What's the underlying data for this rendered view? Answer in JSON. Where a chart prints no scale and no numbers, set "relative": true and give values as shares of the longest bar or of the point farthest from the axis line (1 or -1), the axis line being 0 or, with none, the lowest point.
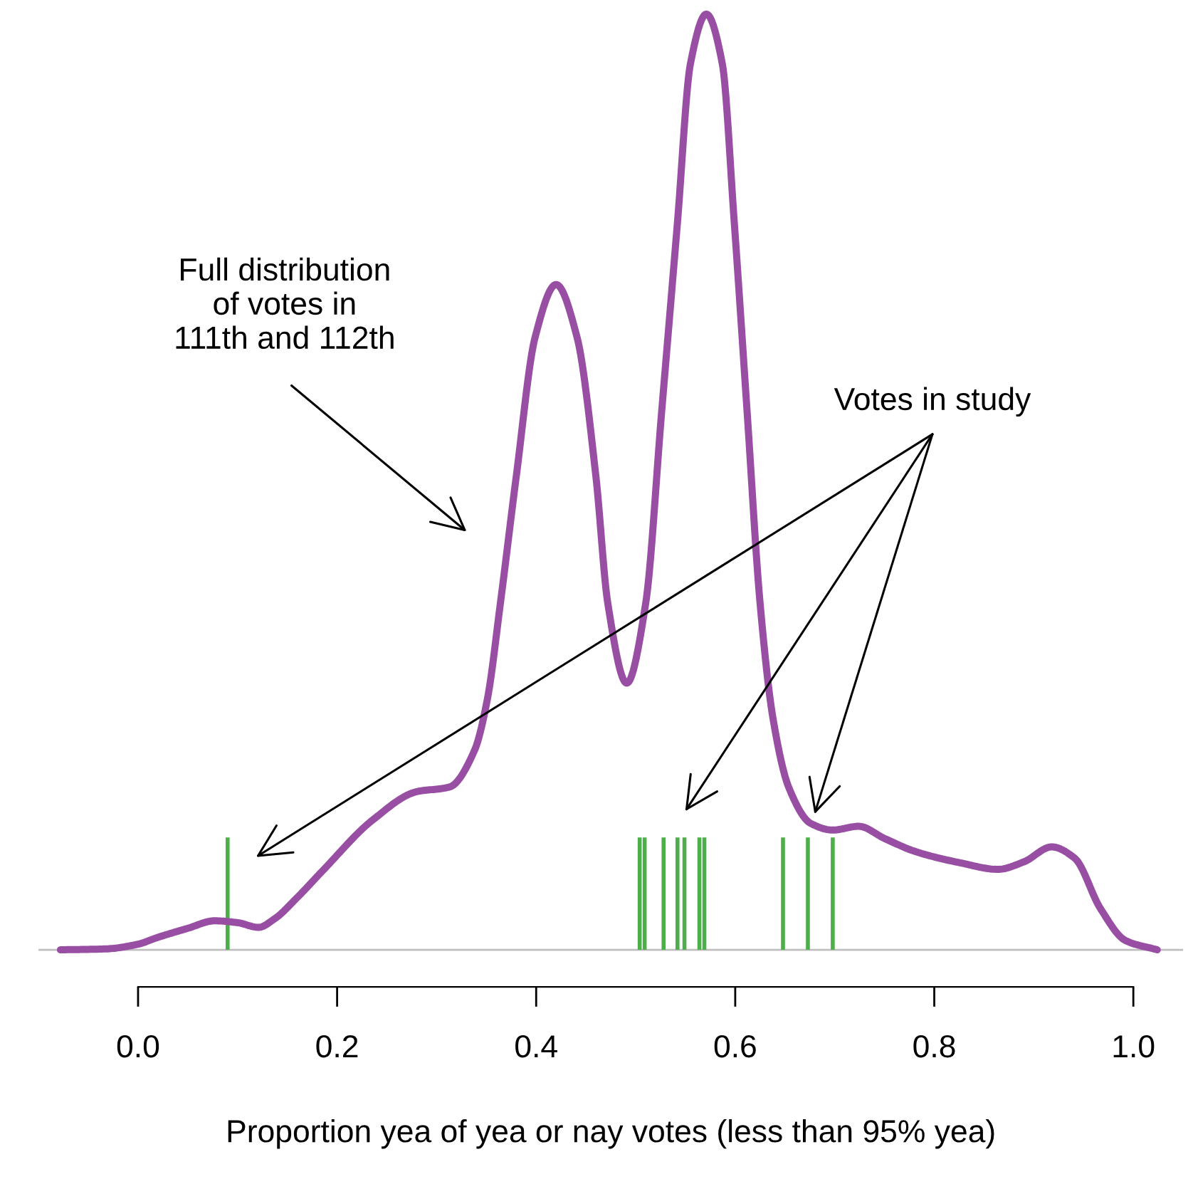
{
  "chart_data": {
    "type": "line",
    "relative": true,
    "xlabel": "Proportion yea of yea or nay votes (less than 95% yea)",
    "xlim": [
      -0.1,
      1.05
    ],
    "xticks": [
      {
        "value": 0,
        "label": "0.0"
      },
      0.2,
      0.4,
      0.6,
      0.8,
      {
        "value": 1,
        "label": "1.0"
      }
    ],
    "tick_labels": "x",
    "series": [
      {
        "color": "#984ea3",
        "x": [
          -0.078,
          -0.032,
          0.0,
          0.019,
          0.05,
          0.077,
          0.1,
          0.121,
          0.137,
          0.16,
          0.185,
          0.236,
          0.28,
          0.313,
          0.338,
          0.351,
          0.364,
          0.38,
          0.399,
          0.42,
          0.441,
          0.46,
          0.472,
          0.491,
          0.51,
          0.526,
          0.542,
          0.555,
          0.571,
          0.587,
          0.599,
          0.612,
          0.625,
          0.638,
          0.654,
          0.676,
          0.698,
          0.724,
          0.75,
          0.781,
          0.826,
          0.864,
          0.89,
          0.918,
          0.941,
          0.967,
          0.992,
          1.024
        ],
        "values": [
          0,
          0.001,
          0.006,
          0.013,
          0.023,
          0.031,
          0.029,
          0.024,
          0.033,
          0.056,
          0.084,
          0.139,
          0.169,
          0.174,
          0.213,
          0.268,
          0.37,
          0.506,
          0.655,
          0.711,
          0.655,
          0.506,
          0.37,
          0.285,
          0.37,
          0.574,
          0.778,
          0.947,
          1.0,
          0.947,
          0.778,
          0.574,
          0.37,
          0.247,
          0.173,
          0.135,
          0.128,
          0.132,
          0.119,
          0.105,
          0.093,
          0.086,
          0.094,
          0.11,
          0.098,
          0.044,
          0.01,
          0
        ]
      },
      {
        "type": "bar",
        "color": "#4daf4a",
        "x": [
          0.09,
          0.504,
          0.509,
          0.528,
          0.542,
          0.549,
          0.564,
          0.569,
          0.648,
          0.673,
          0.698
        ],
        "values": [
          0.12,
          0.12,
          0.12,
          0.12,
          0.12,
          0.12,
          0.12,
          0.12,
          0.12,
          0.12,
          0.12
        ]
      }
    ],
    "annotations": [
      "Full distribution\nof votes in\n111th and 112th",
      "Votes in study"
    ]
  }
}
